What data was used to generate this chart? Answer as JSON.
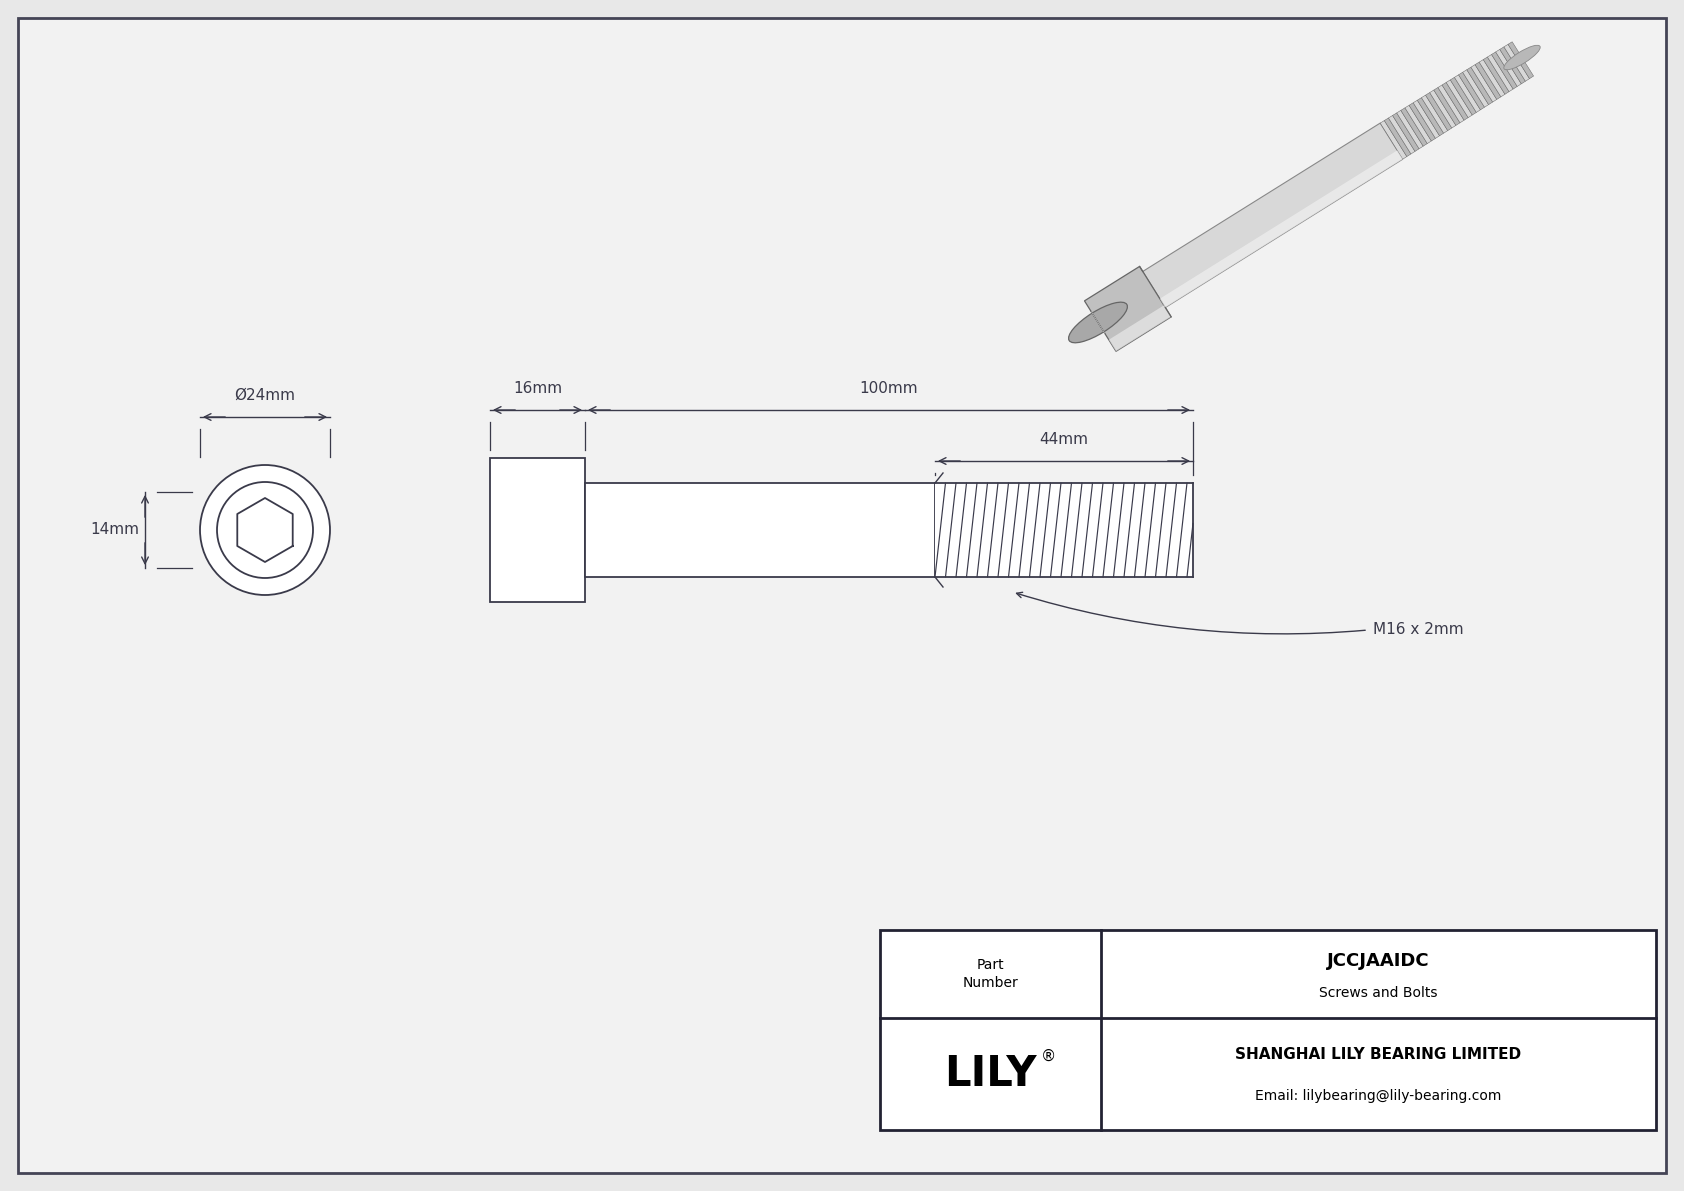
{
  "bg_color": "#e8e8e8",
  "drawing_bg": "#f2f2f2",
  "line_color": "#3a3a4a",
  "dim_color": "#3a3a4a",
  "border_color": "#444455",
  "title": "JCCJAAIDC",
  "subtitle": "Screws and Bolts",
  "company": "SHANGHAI LILY BEARING LIMITED",
  "email": "Email: lilybearing@lily-bearing.com",
  "brand": "LILY",
  "part_label": "Part\nNumber",
  "dim_head_dia": "Ø24mm",
  "dim_head_height": "14mm",
  "dim_body_len": "16mm",
  "dim_total_len": "100mm",
  "dim_thread_len": "44mm",
  "thread_label": "M16 x 2mm"
}
